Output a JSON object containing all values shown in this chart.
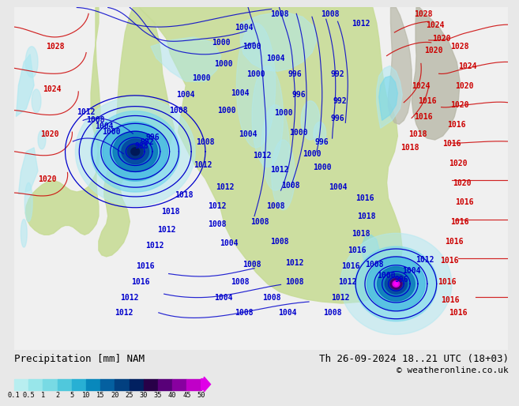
{
  "title_left": "Precipitation [mm] NAM",
  "title_right": "Th 26-09-2024 18..21 UTC (18+03)",
  "copyright": "© weatheronline.co.uk",
  "colorbar_levels": [
    "0.1",
    "0.5",
    "1",
    "2",
    "5",
    "10",
    "15",
    "20",
    "25",
    "30",
    "35",
    "40",
    "45",
    "50"
  ],
  "colorbar_colors": [
    "#b8eef0",
    "#98e6ea",
    "#78dae4",
    "#50c8dc",
    "#28b0d4",
    "#0888bc",
    "#0460a0",
    "#024080",
    "#012060",
    "#280048",
    "#580078",
    "#8800a0",
    "#c000c8",
    "#e000e8"
  ],
  "bg_color": "#e8e8e8",
  "land_color": "#c8dc98",
  "ocean_color": "#f0f0f0",
  "water_color": "#d8eef8",
  "prec_light1": "#b0e8f0",
  "prec_light2": "#78d8ec",
  "prec_med1": "#40b8e0",
  "prec_med2": "#0878b8",
  "prec_dark1": "#0448a0",
  "prec_dark2": "#023080",
  "prec_purple1": "#480070",
  "prec_magenta": "#e000e0",
  "blue_isobar": "#0000cc",
  "red_isobar": "#cc0000",
  "font_mono": "monospace",
  "label_fs": 9,
  "isobar_fs": 7,
  "copy_fs": 8
}
